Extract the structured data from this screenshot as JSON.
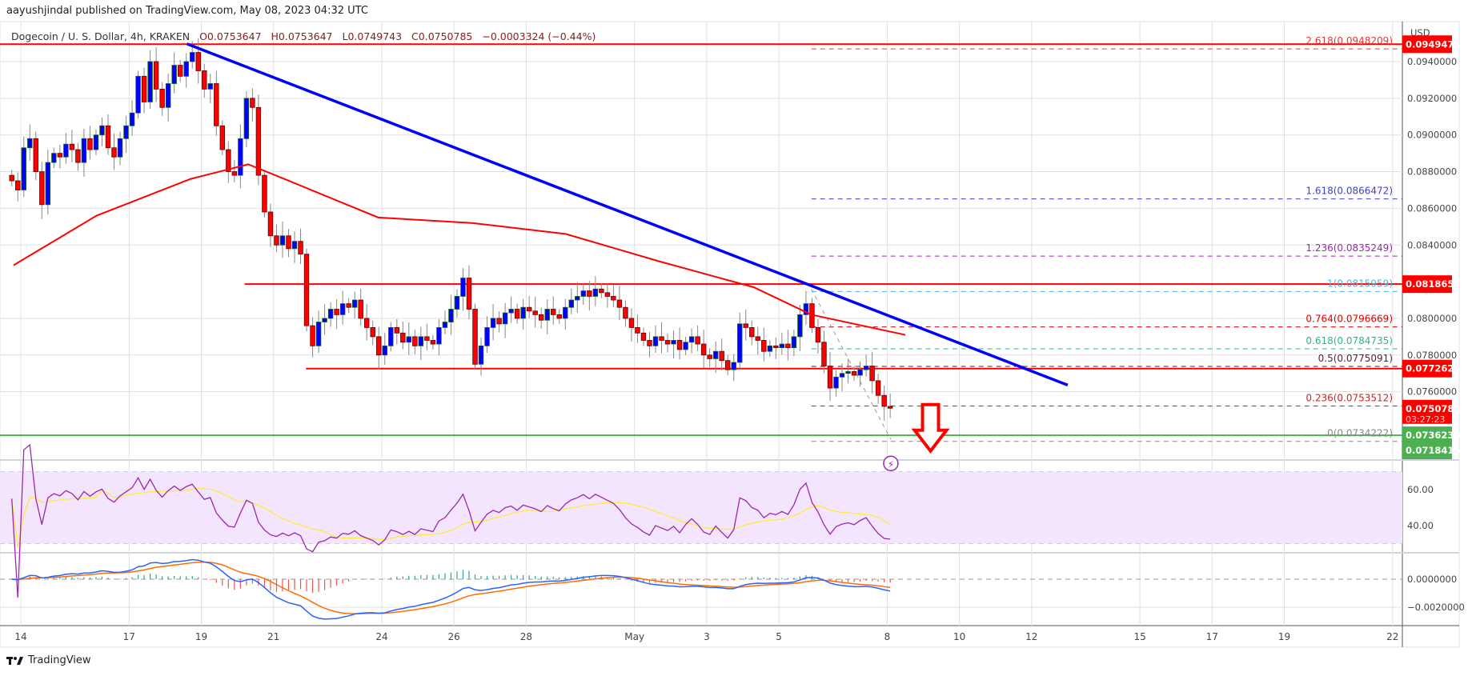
{
  "header": {
    "published": "aayushjindal published on TradingView.com, May 08, 2023 04:32 UTC",
    "symbol": "Dogecoin / U. S. Dollar, 4h, KRAKEN",
    "open": "O0.0753647",
    "high": "H0.0753647",
    "low": "L0.0749743",
    "close": "C0.0750785",
    "change": "−0.0003324 (−0.44%)"
  },
  "footer": {
    "logo_text": "TradingView"
  },
  "chart_data": {
    "type": "candlestick",
    "interval": "4h",
    "currency_label": "USD",
    "colors": {
      "up": "#0000ff",
      "down": "#ff0000",
      "ma": "#ff0000",
      "trendline": "#0000ff",
      "support": "#4caf50",
      "rsi": "#9c27b0",
      "rsi_ma": "#ffeb3b",
      "macd": "#2962ff",
      "signal": "#ff6d00"
    },
    "first_candle": "Apr 13 16:00",
    "closes": [
      0.0875,
      0.087,
      0.0893,
      0.0898,
      0.088,
      0.0862,
      0.0885,
      0.089,
      0.0888,
      0.0895,
      0.0892,
      0.0885,
      0.0898,
      0.0892,
      0.09,
      0.0905,
      0.0893,
      0.0888,
      0.0898,
      0.0905,
      0.0912,
      0.0932,
      0.0918,
      0.094,
      0.0925,
      0.0915,
      0.0928,
      0.0938,
      0.0932,
      0.094,
      0.0945,
      0.0935,
      0.0925,
      0.0928,
      0.0905,
      0.0892,
      0.088,
      0.0878,
      0.0898,
      0.092,
      0.0915,
      0.0878,
      0.0858,
      0.0845,
      0.084,
      0.0845,
      0.0838,
      0.0842,
      0.0835,
      0.0796,
      0.0785,
      0.0798,
      0.08,
      0.0805,
      0.0802,
      0.0808,
      0.0806,
      0.081,
      0.08,
      0.0795,
      0.079,
      0.078,
      0.0785,
      0.0795,
      0.0792,
      0.0787,
      0.079,
      0.0785,
      0.079,
      0.0788,
      0.0786,
      0.0795,
      0.0798,
      0.0805,
      0.0812,
      0.0822,
      0.0805,
      0.0775,
      0.0785,
      0.0795,
      0.08,
      0.0797,
      0.0803,
      0.0805,
      0.08,
      0.0806,
      0.0804,
      0.0802,
      0.0799,
      0.0805,
      0.0802,
      0.08,
      0.0806,
      0.081,
      0.0812,
      0.0815,
      0.0812,
      0.0816,
      0.0814,
      0.0812,
      0.081,
      0.0806,
      0.08,
      0.0795,
      0.0792,
      0.0788,
      0.0785,
      0.079,
      0.0788,
      0.0786,
      0.0788,
      0.0783,
      0.0787,
      0.079,
      0.0786,
      0.078,
      0.0778,
      0.0782,
      0.0777,
      0.0772,
      0.0776,
      0.0797,
      0.0795,
      0.079,
      0.0788,
      0.0782,
      0.0785,
      0.0784,
      0.0786,
      0.0784,
      0.079,
      0.0802,
      0.0808,
      0.0795,
      0.0787,
      0.0774,
      0.0762,
      0.0768,
      0.077,
      0.0771,
      0.0769,
      0.0772,
      0.0774,
      0.0766,
      0.0758,
      0.0752,
      0.0751
    ],
    "moving_average": [
      {
        "day": -0.2,
        "value": 0.0829
      },
      {
        "day": 2.1,
        "value": 0.0856
      },
      {
        "day": 4.7,
        "value": 0.0876
      },
      {
        "day": 6.3,
        "value": 0.0884
      },
      {
        "day": 7.3,
        "value": 0.0876
      },
      {
        "day": 9.9,
        "value": 0.0855
      },
      {
        "day": 12.5,
        "value": 0.0852
      },
      {
        "day": 15.1,
        "value": 0.0846
      },
      {
        "day": 17.7,
        "value": 0.0831
      },
      {
        "day": 20.3,
        "value": 0.0817
      },
      {
        "day": 21.9,
        "value": 0.0802
      },
      {
        "day": 24.5,
        "value": 0.0791
      }
    ],
    "trendline": {
      "from": {
        "day": 4.6,
        "value": 0.09497
      },
      "to": {
        "day": 29.0,
        "value": 0.07636
      }
    },
    "horizontal_lines": [
      {
        "value": 0.0949474,
        "color": "#ff0000",
        "from_day": -1
      },
      {
        "value": 0.0818657,
        "color": "#ff0000",
        "from_day": 6.2
      },
      {
        "value": 0.0772625,
        "color": "#ff0000",
        "from_day": 7.9
      },
      {
        "value": 0.0736239,
        "color": "#4caf50",
        "from_day": -1
      }
    ],
    "fibonacci": {
      "from_day": 21.9,
      "levels": [
        {
          "label": "2.618(0.0948209)",
          "value": 0.0948209,
          "color": "#e53935"
        },
        {
          "label": "1.618(0.0866472)",
          "value": 0.0866472,
          "color": "#3f3fd0"
        },
        {
          "label": "1.236(0.0835249)",
          "value": 0.0835249,
          "color": "#9c27b0"
        },
        {
          "label": "1(0.0815959)",
          "value": 0.0815959,
          "color": "#4fb3e0"
        },
        {
          "label": "0.764(0.0796669)",
          "value": 0.0796669,
          "color": "#e00000"
        },
        {
          "label": "0.618(0.0784735)",
          "value": 0.0784735,
          "color": "#26b98a"
        },
        {
          "label": "0.5(0.0775091)",
          "value": 0.0775091,
          "color": "#5a1a3a"
        },
        {
          "label": "0.236(0.0753512)",
          "value": 0.0753512,
          "color": "#c62828"
        },
        {
          "label": "0(0.0734222)",
          "value": 0.0734222,
          "color": "#888888"
        }
      ],
      "diagonal": {
        "from": {
          "day": 21.9,
          "value": 0.0816
        },
        "to": {
          "day": 24.1,
          "value": 0.0734
        }
      }
    },
    "price_axis": {
      "ticks": [
        "0.0940000",
        "0.0920000",
        "0.0900000",
        "0.0880000",
        "0.0860000",
        "0.0840000",
        "0.0800000",
        "0.0780000",
        "0.0760000"
      ],
      "tick_values": [
        0.094,
        0.092,
        0.09,
        0.088,
        0.086,
        0.084,
        0.08,
        0.078,
        0.076
      ],
      "tags": [
        {
          "text": "0.0949474",
          "value": 0.0949474,
          "color": "#ff0000"
        },
        {
          "text": "0.0818657",
          "value": 0.0818657,
          "color": "#ff0000"
        },
        {
          "text": "0.0772625",
          "value": 0.0772625,
          "color": "#ff0000"
        },
        {
          "text": "0.0750785",
          "sub": "03:27:23",
          "value": 0.0750785,
          "color": "#ff0000"
        },
        {
          "text": "0.0736239",
          "value": 0.0736239,
          "color": "#4caf50"
        },
        {
          "text": "0.0718415",
          "value": 0.0718415,
          "color": "#4caf50"
        }
      ],
      "ylim": [
        0.0718,
        0.0961
      ]
    },
    "rsi_axis": {
      "ticks": [
        "60.00",
        "40.00"
      ],
      "tick_values": [
        60,
        40
      ],
      "band": [
        30,
        70
      ]
    },
    "macd_axis": {
      "ticks": [
        "0.0000000",
        "−0.0020000"
      ],
      "tick_values": [
        0,
        -0.002
      ]
    },
    "x_axis": {
      "labels": [
        "14",
        "17",
        "19",
        "21",
        "24",
        "26",
        "28",
        "May",
        "3",
        "5",
        "8",
        "10",
        "12",
        "15",
        "17",
        "19",
        "22"
      ],
      "days_from_apr14": [
        0,
        3,
        5,
        7,
        10,
        12,
        14,
        17,
        19,
        21,
        24,
        26,
        28,
        31,
        33,
        35,
        38
      ]
    },
    "annotations": [
      {
        "type": "down-arrow",
        "color": "#ff0000",
        "day": 25.2
      }
    ]
  }
}
